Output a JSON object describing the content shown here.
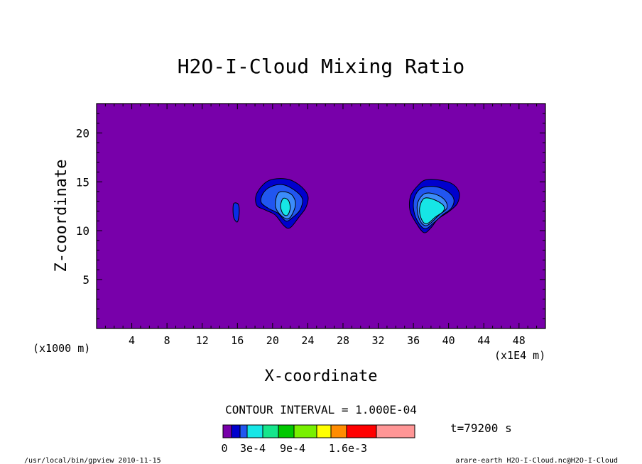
{
  "chart_data": {
    "type": "contour",
    "title": "H2O-I-Cloud Mixing Ratio",
    "xlabel": "X-coordinate",
    "ylabel": "Z-coordinate",
    "x_unit_left": "(x1000 m)",
    "x_unit_right": "(x1E4 m)",
    "xlim": [
      0,
      51
    ],
    "ylim": [
      0,
      23
    ],
    "x_ticks": [
      4,
      8,
      12,
      16,
      20,
      24,
      28,
      32,
      36,
      40,
      44,
      48
    ],
    "y_ticks": [
      5,
      10,
      15,
      20
    ],
    "contour_interval_text": "CONTOUR INTERVAL = 1.000E-04",
    "time_text": "t=79200 s",
    "background_color": "#7800aa",
    "features": [
      {
        "name": "small-cloud",
        "levels": [
          {
            "color": "#0a2de6",
            "points": [
              [
                15.6,
                12.8
              ],
              [
                16.1,
                12.7
              ],
              [
                16.2,
                11.8
              ],
              [
                16.0,
                10.9
              ],
              [
                15.6,
                11.3
              ],
              [
                15.5,
                12.2
              ]
            ]
          }
        ]
      },
      {
        "name": "cloud-near-x21",
        "levels": [
          {
            "color": "#0000cd",
            "points": [
              [
                19.5,
                15.1
              ],
              [
                21.5,
                15.3
              ],
              [
                23.0,
                14.7
              ],
              [
                24.0,
                13.6
              ],
              [
                23.8,
                12.4
              ],
              [
                23.0,
                11.4
              ],
              [
                22.0,
                10.3
              ],
              [
                21.3,
                10.5
              ],
              [
                20.3,
                11.6
              ],
              [
                19.2,
                12.1
              ],
              [
                18.2,
                12.6
              ],
              [
                18.2,
                13.8
              ]
            ]
          },
          {
            "color": "#2156f0",
            "points": [
              [
                19.8,
                14.5
              ],
              [
                21.2,
                14.7
              ],
              [
                22.7,
                14.0
              ],
              [
                23.4,
                13.2
              ],
              [
                23.1,
                12.1
              ],
              [
                22.2,
                11.3
              ],
              [
                21.5,
                11.0
              ],
              [
                20.6,
                11.8
              ],
              [
                19.5,
                12.3
              ],
              [
                18.7,
                12.9
              ],
              [
                18.9,
                13.8
              ]
            ]
          },
          {
            "color": "#3c8cfa",
            "points": [
              [
                20.7,
                13.9
              ],
              [
                22.0,
                13.8
              ],
              [
                22.6,
                12.9
              ],
              [
                22.3,
                11.8
              ],
              [
                21.7,
                11.2
              ],
              [
                20.8,
                11.7
              ],
              [
                20.3,
                12.6
              ]
            ]
          },
          {
            "color": "#16e6e6",
            "points": [
              [
                21.2,
                13.3
              ],
              [
                21.8,
                13.1
              ],
              [
                22.0,
                12.3
              ],
              [
                21.7,
                11.6
              ],
              [
                21.2,
                11.7
              ],
              [
                20.9,
                12.5
              ]
            ]
          }
        ]
      },
      {
        "name": "cloud-near-x38",
        "levels": [
          {
            "color": "#0000cd",
            "points": [
              [
                36.6,
                14.7
              ],
              [
                37.4,
                15.2
              ],
              [
                38.8,
                15.2
              ],
              [
                40.4,
                14.8
              ],
              [
                41.2,
                13.9
              ],
              [
                41.0,
                12.8
              ],
              [
                40.1,
                12.0
              ],
              [
                38.8,
                11.2
              ],
              [
                38.0,
                10.3
              ],
              [
                37.2,
                9.8
              ],
              [
                36.3,
                10.8
              ],
              [
                35.6,
                12.1
              ],
              [
                35.7,
                13.6
              ]
            ]
          },
          {
            "color": "#2156f0",
            "points": [
              [
                37.0,
                14.4
              ],
              [
                38.6,
                14.5
              ],
              [
                39.9,
                14.0
              ],
              [
                40.6,
                13.2
              ],
              [
                40.3,
                12.3
              ],
              [
                39.3,
                11.6
              ],
              [
                38.3,
                10.8
              ],
              [
                37.3,
                10.2
              ],
              [
                36.4,
                11.1
              ],
              [
                36.0,
                12.4
              ],
              [
                36.2,
                13.6
              ]
            ]
          },
          {
            "color": "#3c8cfa",
            "points": [
              [
                37.3,
                13.8
              ],
              [
                38.6,
                13.7
              ],
              [
                39.6,
                13.1
              ],
              [
                39.8,
                12.3
              ],
              [
                38.9,
                11.6
              ],
              [
                37.7,
                10.6
              ],
              [
                37.0,
                10.7
              ],
              [
                36.5,
                11.7
              ],
              [
                36.5,
                12.9
              ]
            ]
          },
          {
            "color": "#16e6e6",
            "points": [
              [
                37.2,
                13.3
              ],
              [
                38.3,
                13.2
              ],
              [
                39.4,
                12.6
              ],
              [
                39.4,
                12.0
              ],
              [
                38.5,
                11.4
              ],
              [
                37.5,
                10.7
              ],
              [
                36.9,
                11.2
              ],
              [
                36.7,
                12.3
              ]
            ]
          }
        ]
      }
    ],
    "colorbar": {
      "colors": [
        "#7800aa",
        "#0000cd",
        "#2156f0",
        "#16e6e6",
        "#16e68c",
        "#00c800",
        "#78f000",
        "#ffff00",
        "#ff8c00",
        "#ff0000",
        "#ff9696"
      ],
      "labels": [
        "0",
        "3e-4",
        "9e-4",
        "1.6e-3"
      ]
    }
  },
  "footer": {
    "left": "/usr/local/bin/gpview  2010-11-15",
    "right": "arare-earth_H2O-I-Cloud.nc@H2O-I-Cloud"
  }
}
